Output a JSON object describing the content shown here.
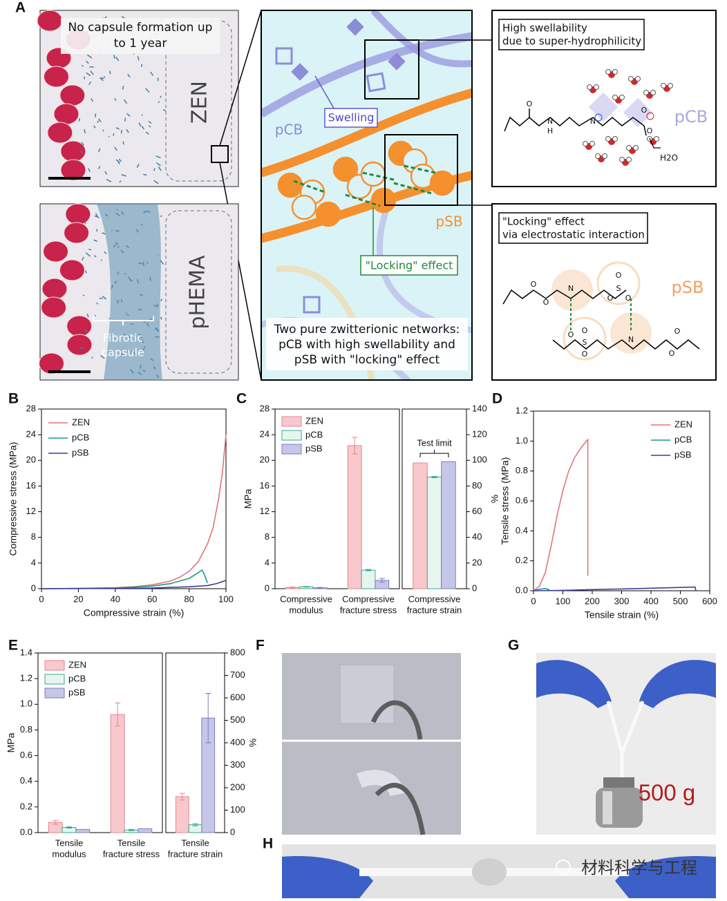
{
  "panel_a": {
    "label": "A",
    "top_photo": {
      "caption": [
        "No capsule formation up",
        "to 1 year"
      ],
      "material": "ZEN"
    },
    "bottom_photo": {
      "material": "pHEMA",
      "annotation": [
        "Fibrotic",
        "capsule"
      ]
    },
    "schematic": {
      "swelling": "Swelling",
      "pcb": "pCB",
      "psb": "pSB",
      "locking": "\"Locking\" effect",
      "caption": [
        "Two pure zwitterionic networks:",
        "pCB with high swellability and",
        "pSB with \"locking\" effect"
      ]
    },
    "swell_box": {
      "title": [
        "High swellability",
        "due to super-hydrophilicity"
      ],
      "polymer": "pCB",
      "water": "H2O",
      "atoms": [
        "O",
        "N",
        "H",
        "N",
        "O",
        "O"
      ]
    },
    "lock_box": {
      "title": [
        "\"Locking\" effect",
        "via electrostatic interaction"
      ],
      "polymer": "pSB",
      "atoms": [
        "O",
        "O",
        "N",
        "S",
        "O",
        "O",
        "O",
        "O",
        "S",
        "O",
        "O",
        "N",
        "O",
        "O"
      ]
    }
  },
  "chart_b": {
    "type": "line",
    "label": "B",
    "xlabel": "Compressive strain (%)",
    "ylabel": "Compressive stress (MPa)",
    "xlim": [
      0,
      100
    ],
    "ylim": [
      0,
      28
    ],
    "xticks": [
      0,
      20,
      40,
      60,
      80,
      100
    ],
    "yticks": [
      0,
      4,
      8,
      12,
      16,
      20,
      24,
      28
    ],
    "legend": "upper left",
    "series": [
      {
        "name": "ZEN",
        "color": "#e2737b",
        "x": [
          0,
          20,
          40,
          50,
          60,
          70,
          75,
          80,
          85,
          90,
          93,
          96,
          98,
          100
        ],
        "values": [
          0,
          0.05,
          0.15,
          0.3,
          0.6,
          1.2,
          1.8,
          2.7,
          4.2,
          7,
          9.5,
          14,
          18,
          24
        ]
      },
      {
        "name": "pCB",
        "color": "#199a8a",
        "x": [
          0,
          20,
          40,
          60,
          70,
          80,
          85,
          87,
          88,
          90
        ],
        "values": [
          0,
          0.05,
          0.1,
          0.4,
          0.8,
          1.6,
          2.5,
          2.9,
          2.4,
          0.9
        ]
      },
      {
        "name": "pSB",
        "color": "#3c3c96",
        "x": [
          0,
          20,
          40,
          60,
          80,
          90,
          95,
          100
        ],
        "values": [
          0,
          0.02,
          0.05,
          0.1,
          0.3,
          0.5,
          0.8,
          1.3
        ]
      }
    ]
  },
  "chart_c": {
    "type": "bar",
    "label": "C",
    "panels": [
      {
        "ylabel": "MPa",
        "axis_side": "left",
        "ylim": [
          0,
          28
        ],
        "yticks": [
          0,
          4,
          8,
          12,
          16,
          20,
          24,
          28
        ],
        "categories": [
          [
            "Compressive",
            "modulus"
          ],
          [
            "Compressive",
            "fracture stress"
          ]
        ],
        "series": [
          {
            "name": "ZEN",
            "color": "#e6838f",
            "fill": "#f8c8cd",
            "values": [
              0.2,
              22.3
            ],
            "errors": [
              0.05,
              1.3
            ]
          },
          {
            "name": "pCB",
            "color": "#3aa88c",
            "fill": "#e6f6ef",
            "values": [
              0.3,
              2.9
            ],
            "errors": [
              0.05,
              0.1
            ]
          },
          {
            "name": "pSB",
            "color": "#7c7cc0",
            "fill": "#c6c6e8",
            "values": [
              0.15,
              1.3
            ],
            "errors": [
              0.05,
              0.3
            ]
          }
        ]
      },
      {
        "ylabel": "%",
        "axis_side": "right",
        "ylim": [
          0,
          140
        ],
        "yticks": [
          0,
          20,
          40,
          60,
          80,
          100,
          120,
          140
        ],
        "annotation": "Test limit",
        "categories": [
          [
            "Compressive",
            "fracture strain"
          ]
        ],
        "series": [
          {
            "color": "#e6838f",
            "fill": "#f8c8cd",
            "values": [
              98
            ],
            "errors": [
              null
            ]
          },
          {
            "color": "#3aa88c",
            "fill": "#e6f6ef",
            "values": [
              87
            ],
            "errors": [
              0.5
            ]
          },
          {
            "color": "#7c7cc0",
            "fill": "#c6c6e8",
            "values": [
              99
            ],
            "errors": [
              null
            ]
          }
        ]
      }
    ]
  },
  "chart_d": {
    "type": "line",
    "label": "D",
    "xlabel": "Tensile strain (%)",
    "ylabel": "Tensile stress (MPa)",
    "xlim": [
      0,
      600
    ],
    "ylim": [
      0,
      1.2
    ],
    "xticks": [
      0,
      100,
      200,
      300,
      400,
      500,
      600
    ],
    "yticks": [
      {
        "value": 0,
        "label": "0.0"
      },
      0.2,
      0.4,
      0.6,
      0.8,
      {
        "value": 1,
        "label": "1.0"
      },
      1.2
    ],
    "legend": "upper right",
    "series": [
      {
        "name": "ZEN",
        "color": "#e2737b",
        "x": [
          0,
          20,
          40,
          60,
          80,
          100,
          120,
          140,
          160,
          180,
          185,
          185
        ],
        "values": [
          0,
          0.03,
          0.12,
          0.3,
          0.5,
          0.67,
          0.8,
          0.89,
          0.95,
          1.0,
          1.01,
          0.1
        ]
      },
      {
        "name": "pCB",
        "color": "#199a8a",
        "x": [
          0,
          20,
          40,
          50,
          55
        ],
        "values": [
          0,
          0.01,
          0.015,
          0.01,
          0
        ]
      },
      {
        "name": "pSB",
        "color": "#3c3c96",
        "x": [
          0,
          100,
          200,
          300,
          400,
          500,
          550,
          553
        ],
        "values": [
          0,
          0.003,
          0.008,
          0.012,
          0.017,
          0.022,
          0.025,
          0
        ]
      }
    ]
  },
  "chart_e": {
    "type": "bar",
    "label": "E",
    "panels": [
      {
        "ylabel": "MPa",
        "axis_side": "left",
        "ylim": [
          0,
          1.4
        ],
        "yticks": [
          {
            "value": 0,
            "label": "0.0"
          },
          0.2,
          0.4,
          0.6,
          0.8,
          {
            "value": 1,
            "label": "1.0"
          },
          1.2,
          1.4
        ],
        "categories": [
          [
            "Tensile",
            "modulus"
          ],
          [
            "Tensile",
            "fracture stress"
          ]
        ],
        "series": [
          {
            "name": "ZEN",
            "color": "#e6838f",
            "fill": "#f8c8cd",
            "values": [
              0.08,
              0.92
            ],
            "errors": [
              0.015,
              0.09
            ]
          },
          {
            "name": "pCB",
            "color": "#3aa88c",
            "fill": "#e6f6ef",
            "values": [
              0.04,
              0.02
            ],
            "errors": [
              0.005,
              0.005
            ]
          },
          {
            "name": "pSB",
            "color": "#7c7cc0",
            "fill": "#c6c6e8",
            "values": [
              0.025,
              0.03
            ],
            "errors": [
              null,
              null
            ]
          }
        ]
      },
      {
        "ylabel": "%",
        "axis_side": "right",
        "ylim": [
          0,
          800
        ],
        "yticks": [
          0,
          100,
          200,
          300,
          400,
          500,
          600,
          700,
          800
        ],
        "categories": [
          [
            "Tensile",
            "fracture strain"
          ]
        ],
        "series": [
          {
            "color": "#e6838f",
            "fill": "#f8c8cd",
            "values": [
              160
            ],
            "errors": [
              15
            ]
          },
          {
            "color": "#3aa88c",
            "fill": "#e6f6ef",
            "values": [
              35
            ],
            "errors": [
              5
            ]
          },
          {
            "color": "#7c7cc0",
            "fill": "#c6c6e8",
            "values": [
              510
            ],
            "errors": [
              110
            ]
          }
        ]
      }
    ]
  },
  "panel_f": {
    "label": "F"
  },
  "panel_g": {
    "label": "G",
    "weight": "500 g"
  },
  "panel_h": {
    "label": "H"
  },
  "watermark": "材料科学与工程"
}
